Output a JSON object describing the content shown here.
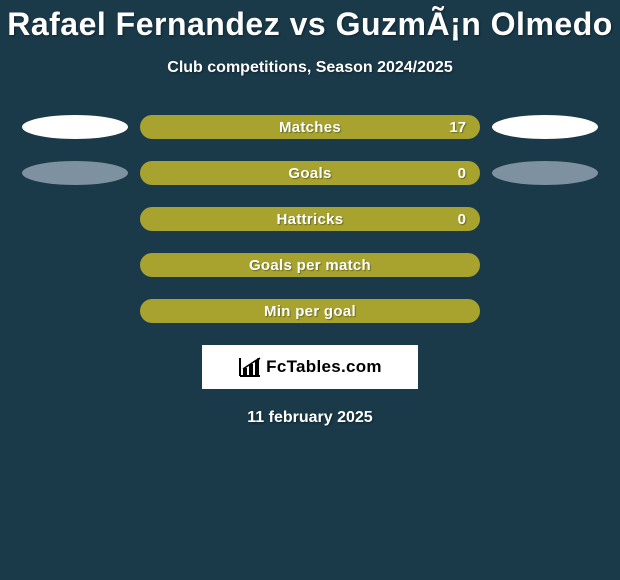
{
  "bg_color": "#1a3a4a",
  "title": "Rafael Fernandez vs GuzmÃ¡n Olmedo",
  "subtitle": "Club competitions, Season 2024/2025",
  "date": "11 february 2025",
  "logo_text": "FcTables.com",
  "oval_colors": {
    "white": "#ffffff",
    "grey": "#7e91a0"
  },
  "bar_color": "#a7a32e",
  "text_color": "#ffffff",
  "stats": [
    {
      "label": "Matches",
      "value": "17",
      "left_oval": "white",
      "right_oval": "white"
    },
    {
      "label": "Goals",
      "value": "0",
      "left_oval": "grey",
      "right_oval": "grey"
    },
    {
      "label": "Hattricks",
      "value": "0",
      "left_oval": "none",
      "right_oval": "none"
    },
    {
      "label": "Goals per match",
      "value": "",
      "left_oval": "none",
      "right_oval": "none"
    },
    {
      "label": "Min per goal",
      "value": "",
      "left_oval": "none",
      "right_oval": "none"
    }
  ]
}
